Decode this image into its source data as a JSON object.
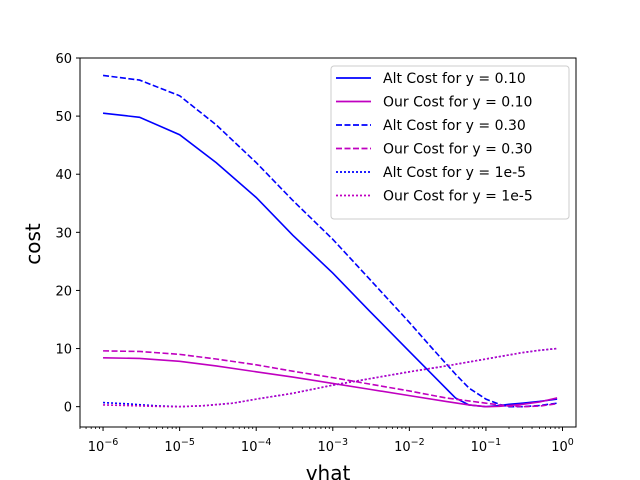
{
  "chart_data": {
    "type": "line",
    "xlabel": "vhat",
    "ylabel": "cost",
    "x_scale": "log",
    "xlim": [
      5e-07,
      1.5
    ],
    "ylim": [
      -3.5,
      60
    ],
    "x_ticks": [
      {
        "base": "10",
        "exp": "−6",
        "value": 1e-06
      },
      {
        "base": "10",
        "exp": "−5",
        "value": 1e-05
      },
      {
        "base": "10",
        "exp": "−4",
        "value": 0.0001
      },
      {
        "base": "10",
        "exp": "−3",
        "value": 0.001
      },
      {
        "base": "10",
        "exp": "−2",
        "value": 0.01
      },
      {
        "base": "10",
        "exp": "−1",
        "value": 0.1
      },
      {
        "base": "10",
        "exp": "0",
        "value": 1
      }
    ],
    "y_ticks": [
      "0",
      "10",
      "20",
      "30",
      "40",
      "50",
      "60"
    ],
    "grid": false,
    "legend_position": "top-right",
    "series": [
      {
        "name": "Alt Cost for y = 0.10",
        "color": "#0000ff",
        "style": "solid",
        "x": [
          1e-06,
          3e-06,
          1e-05,
          3e-05,
          0.0001,
          0.0003,
          0.001,
          0.003,
          0.01,
          0.02,
          0.04,
          0.06,
          0.1,
          0.15,
          0.2,
          0.3,
          0.5,
          0.85
        ],
        "y": [
          50.5,
          49.8,
          46.8,
          42.0,
          36.0,
          29.5,
          23.0,
          16.5,
          9.5,
          5.5,
          1.5,
          0.3,
          0.0,
          0.2,
          0.4,
          0.6,
          0.9,
          1.3
        ]
      },
      {
        "name": "Our Cost for y = 0.10",
        "color": "#c000c0",
        "style": "solid",
        "x": [
          1e-06,
          3e-06,
          1e-05,
          3e-05,
          0.0001,
          0.0003,
          0.001,
          0.003,
          0.01,
          0.03,
          0.06,
          0.1,
          0.15,
          0.2,
          0.3,
          0.5,
          0.85
        ],
        "y": [
          8.4,
          8.3,
          7.8,
          7.0,
          6.0,
          5.1,
          4.0,
          3.0,
          1.9,
          0.9,
          0.3,
          0.0,
          0.05,
          0.2,
          0.4,
          0.8,
          1.5
        ]
      },
      {
        "name": "Alt Cost for y = 0.30",
        "color": "#0000ff",
        "style": "dashed",
        "x": [
          1e-06,
          3e-06,
          1e-05,
          3e-05,
          0.0001,
          0.0003,
          0.001,
          0.003,
          0.01,
          0.02,
          0.04,
          0.06,
          0.1,
          0.15,
          0.2,
          0.3,
          0.5,
          0.85
        ],
        "y": [
          57.0,
          56.2,
          53.5,
          48.5,
          42.0,
          35.5,
          28.8,
          22.0,
          14.5,
          10.0,
          5.6,
          3.2,
          1.3,
          0.4,
          0.0,
          0.0,
          0.2,
          0.6
        ]
      },
      {
        "name": "Our Cost for y = 0.30",
        "color": "#c000c0",
        "style": "dashed",
        "x": [
          1e-06,
          3e-06,
          1e-05,
          3e-05,
          0.0001,
          0.0003,
          0.001,
          0.003,
          0.01,
          0.03,
          0.1,
          0.2,
          0.3,
          0.5,
          0.85
        ],
        "y": [
          9.6,
          9.5,
          9.0,
          8.2,
          7.2,
          6.1,
          5.0,
          3.9,
          2.7,
          1.5,
          0.6,
          0.1,
          0.0,
          0.1,
          0.5
        ]
      },
      {
        "name": "Alt Cost for y = 1e-5",
        "color": "#0000ff",
        "style": "dotted",
        "x": [
          1e-06,
          2e-06,
          5e-06,
          1e-05,
          2e-05,
          5e-05,
          0.0001,
          0.0003,
          0.001,
          0.003,
          0.01,
          0.03,
          0.1,
          0.2,
          0.3,
          0.5,
          0.85
        ],
        "y": [
          0.7,
          0.5,
          0.15,
          0.0,
          0.15,
          0.6,
          1.3,
          2.3,
          3.7,
          4.8,
          6.0,
          7.0,
          8.2,
          8.9,
          9.3,
          9.7,
          10.0
        ]
      },
      {
        "name": "Our Cost for y = 1e-5",
        "color": "#c000c0",
        "style": "dotted",
        "x": [
          1e-06,
          2e-06,
          5e-06,
          1e-05,
          2e-05,
          5e-05,
          0.0001,
          0.0003,
          0.001,
          0.003,
          0.01,
          0.03,
          0.1,
          0.2,
          0.3,
          0.5,
          0.85
        ],
        "y": [
          0.3,
          0.2,
          0.05,
          0.0,
          0.15,
          0.6,
          1.3,
          2.3,
          3.7,
          4.8,
          6.0,
          7.0,
          8.2,
          8.9,
          9.3,
          9.7,
          10.0
        ]
      }
    ]
  }
}
